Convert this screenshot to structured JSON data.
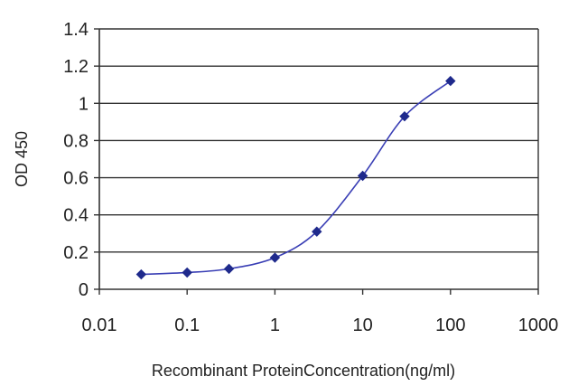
{
  "chart_data": {
    "type": "line",
    "title": "",
    "xlabel": "Recombinant ProteinConcentration(ng/ml)",
    "ylabel": "OD 450",
    "x_scale": "log",
    "xlim": [
      0.01,
      1000
    ],
    "ylim": [
      0,
      1.4
    ],
    "x_ticks": [
      0.01,
      0.1,
      1,
      10,
      100,
      1000
    ],
    "x_tick_labels": [
      "0.01",
      "0.1",
      "1",
      "10",
      "100",
      "1000"
    ],
    "y_ticks": [
      0,
      0.2,
      0.4,
      0.6,
      0.8,
      1,
      1.2,
      1.4
    ],
    "y_tick_labels": [
      "0",
      "0.2",
      "0.4",
      "0.6",
      "0.8",
      "1",
      "1.2",
      "1.4"
    ],
    "grid": "horizontal",
    "legend": "none",
    "series": [
      {
        "x": [
          0.03,
          0.1,
          0.3,
          1,
          3,
          10,
          30,
          100
        ],
        "y": [
          0.08,
          0.09,
          0.11,
          0.17,
          0.31,
          0.61,
          0.93,
          1.12
        ],
        "color": "#1f2a8c",
        "marker": "diamond"
      }
    ]
  }
}
